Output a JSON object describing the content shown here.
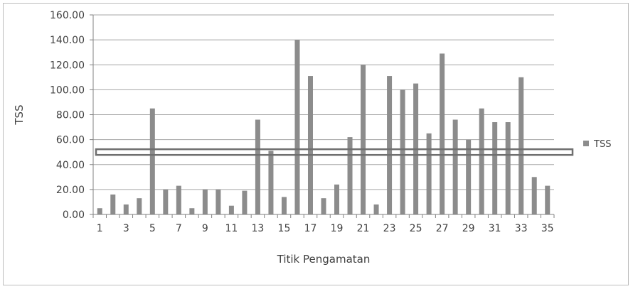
{
  "chart_data": {
    "type": "bar",
    "title": "",
    "xlabel": "Titik Pengamatan",
    "ylabel": "TSS",
    "ylim": [
      0,
      160
    ],
    "ytick_step": 20,
    "ytick_format_decimals": 2,
    "grid": true,
    "legend_position": "right",
    "x_tick_labels_shown_every": 2,
    "categories": [
      "1",
      "2",
      "3",
      "4",
      "5",
      "6",
      "7",
      "8",
      "9",
      "10",
      "11",
      "12",
      "13",
      "14",
      "15",
      "16",
      "17",
      "18",
      "19",
      "20",
      "21",
      "22",
      "23",
      "24",
      "25",
      "26",
      "27",
      "28",
      "29",
      "30",
      "31",
      "32",
      "33",
      "34",
      "35"
    ],
    "series": [
      {
        "name": "TSS",
        "color": "#8c8c8c",
        "values": [
          5,
          16,
          8,
          13,
          85,
          20,
          23,
          5,
          20,
          20,
          7,
          19,
          76,
          51,
          14,
          140,
          111,
          13,
          24,
          62,
          120,
          8,
          111,
          100,
          105,
          65,
          129,
          76,
          60,
          85,
          74,
          74,
          110,
          30,
          23
        ]
      }
    ],
    "annotations": [
      {
        "type": "horizontal_line",
        "y": 50,
        "description": "threshold band"
      }
    ]
  }
}
